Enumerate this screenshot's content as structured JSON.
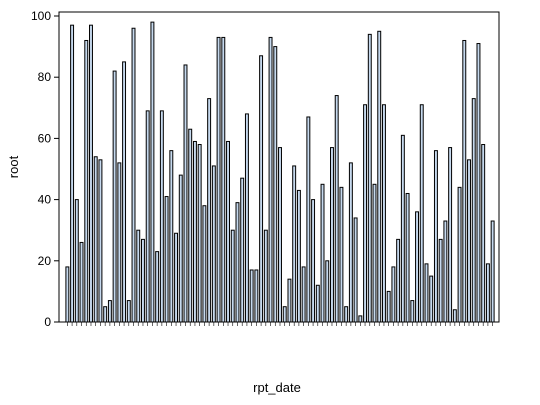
{
  "chart_data": {
    "type": "bar",
    "title": "",
    "xlabel": "rpt_date",
    "ylabel": "root",
    "ylim": [
      0,
      100
    ],
    "yticks": [
      0,
      20,
      40,
      60,
      80,
      100
    ],
    "grid": false,
    "bar_fill": "#c6d9ee",
    "bar_stroke": "#000000",
    "values": [
      18,
      97,
      40,
      26,
      92,
      97,
      54,
      53,
      5,
      7,
      82,
      52,
      85,
      7,
      96,
      30,
      27,
      69,
      98,
      23,
      69,
      41,
      56,
      29,
      48,
      84,
      63,
      59,
      58,
      38,
      73,
      51,
      93,
      93,
      59,
      30,
      39,
      47,
      68,
      17,
      17,
      87,
      30,
      93,
      90,
      57,
      5,
      14,
      51,
      43,
      18,
      67,
      40,
      12,
      45,
      20,
      57,
      74,
      44,
      5,
      52,
      34,
      2,
      71,
      94,
      45,
      95,
      71,
      10,
      18,
      27,
      61,
      42,
      7,
      36,
      71,
      19,
      15,
      56,
      27,
      33,
      57,
      4,
      44,
      92,
      53,
      73,
      91,
      58,
      19,
      33
    ]
  }
}
